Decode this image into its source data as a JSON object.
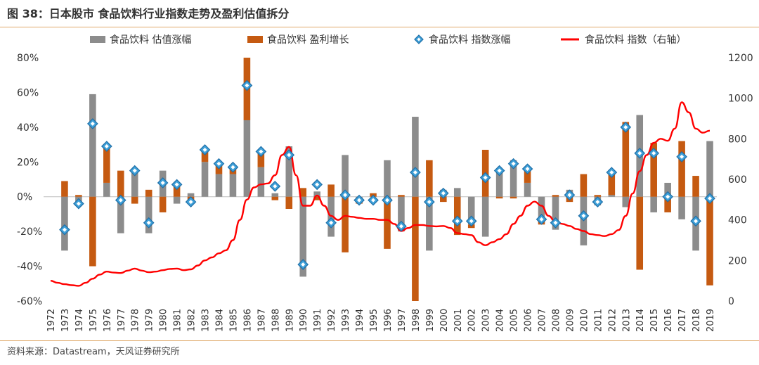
{
  "figure": {
    "title": "图 38：日本股市  食品饮料行业指数走势及盈利估值拆分",
    "source": "资料来源：Datastream，天风证券研究所"
  },
  "colors": {
    "valuation": "#8c8c8c",
    "earnings": "#c55a11",
    "change_marker_fill": "#3fa0d8",
    "change_marker_stroke": "#1f6fa8",
    "index_line": "#ff0000",
    "accent_rule": "#e0a96a"
  },
  "chart_data": {
    "type": "bar",
    "stacked": true,
    "categories": [
      "1972",
      "1973",
      "1974",
      "1975",
      "1976",
      "1977",
      "1978",
      "1979",
      "1980",
      "1981",
      "1982",
      "1983",
      "1984",
      "1985",
      "1986",
      "1987",
      "1988",
      "1989",
      "1990",
      "1991",
      "1992",
      "1993",
      "1994",
      "1995",
      "1996",
      "1997",
      "1998",
      "1999",
      "2000",
      "2001",
      "2002",
      "2003",
      "2004",
      "2005",
      "2006",
      "2007",
      "2008",
      "2009",
      "2010",
      "2011",
      "2012",
      "2013",
      "2014",
      "2015",
      "2016",
      "2017",
      "2018",
      "2019"
    ],
    "y_left": {
      "min": -60,
      "max": 80,
      "step": 20,
      "unit": "%",
      "ticks": [
        "80%",
        "60%",
        "40%",
        "20%",
        "0%",
        "-20%",
        "-40%",
        "-60%"
      ]
    },
    "y_right": {
      "min": 0,
      "max": 1200,
      "step": 200,
      "ticks": [
        "1200",
        "1000",
        "800",
        "600",
        "400",
        "200",
        "0"
      ]
    },
    "legend_position": "top",
    "series": [
      {
        "name": "食品饮料 估值涨幅",
        "kind": "bar",
        "axis": "left",
        "values": [
          null,
          -31,
          -5,
          59,
          8,
          -21,
          14,
          -21,
          15,
          -4,
          2,
          20,
          13,
          13,
          44,
          17,
          2,
          29,
          -46,
          3,
          -23,
          24,
          -3,
          0,
          21,
          -20,
          46,
          -31,
          4,
          5,
          -16,
          -23,
          15,
          21,
          8,
          -12,
          -19,
          4,
          -28,
          -5,
          1,
          -6,
          47,
          -9,
          8,
          -13,
          -31,
          32
        ]
      },
      {
        "name": "食品饮料 盈利增长",
        "kind": "bar",
        "axis": "left",
        "values": [
          null,
          9,
          1,
          -40,
          22,
          15,
          -4,
          4,
          -9,
          7,
          -2,
          7,
          6,
          4,
          36,
          10,
          -2,
          -7,
          5,
          -2,
          7,
          -32,
          -1,
          2,
          -30,
          1,
          -60,
          21,
          -3,
          -22,
          -2,
          27,
          -1,
          -1,
          8,
          -4,
          1,
          -3,
          13,
          1,
          13,
          43,
          -42,
          31,
          -9,
          32,
          12,
          -51
        ]
      },
      {
        "name": "食品饮料 指数涨幅",
        "kind": "marker",
        "axis": "left",
        "values": [
          null,
          -19,
          -4,
          42,
          29,
          -2,
          15,
          -15,
          8,
          7,
          -3,
          27,
          19,
          17,
          64,
          26,
          6,
          24,
          -39,
          7,
          -15,
          1,
          -2,
          -2,
          -2,
          -17,
          14,
          -3,
          2,
          -14,
          -14,
          11,
          15,
          19,
          16,
          -13,
          -15,
          1,
          -11,
          -3,
          14,
          40,
          25,
          25,
          0,
          23,
          -14,
          -1
        ]
      },
      {
        "name": "食品饮料 指数（右轴）",
        "kind": "line",
        "axis": "right",
        "x": [
          1972,
          1972.5,
          1973,
          1973.5,
          1974,
          1974.5,
          1975,
          1975.5,
          1976,
          1976.5,
          1977,
          1977.5,
          1978,
          1978.5,
          1979,
          1979.5,
          1980,
          1980.5,
          1981,
          1981.5,
          1982,
          1982.5,
          1983,
          1983.5,
          1984,
          1984.5,
          1985,
          1985.5,
          1986,
          1986.5,
          1987,
          1987.5,
          1988,
          1988.5,
          1989,
          1989.5,
          1990,
          1990.5,
          1991,
          1991.5,
          1992,
          1992.5,
          1993,
          1993.5,
          1994,
          1994.5,
          1995,
          1995.5,
          1996,
          1996.5,
          1997,
          1997.5,
          1998,
          1998.5,
          1999,
          1999.5,
          2000,
          2000.5,
          2001,
          2001.5,
          2002,
          2002.5,
          2003,
          2003.5,
          2004,
          2004.5,
          2005,
          2005.5,
          2006,
          2006.5,
          2007,
          2007.5,
          2008,
          2008.5,
          2009,
          2009.5,
          2010,
          2010.5,
          2011,
          2011.5,
          2012,
          2012.5,
          2013,
          2013.5,
          2014,
          2014.5,
          2015,
          2015.5,
          2016,
          2016.5,
          2017,
          2017.5,
          2018,
          2018.5,
          2019
        ],
        "values": [
          100,
          90,
          83,
          78,
          75,
          90,
          110,
          130,
          145,
          140,
          138,
          150,
          160,
          150,
          142,
          145,
          152,
          158,
          160,
          152,
          156,
          175,
          200,
          215,
          235,
          250,
          300,
          400,
          500,
          560,
          575,
          580,
          620,
          720,
          760,
          620,
          470,
          470,
          520,
          470,
          420,
          400,
          420,
          415,
          410,
          405,
          405,
          400,
          400,
          380,
          345,
          360,
          375,
          375,
          370,
          368,
          370,
          360,
          335,
          330,
          325,
          290,
          275,
          290,
          305,
          330,
          380,
          420,
          470,
          490,
          470,
          420,
          390,
          380,
          370,
          355,
          345,
          330,
          325,
          320,
          330,
          350,
          420,
          530,
          640,
          720,
          780,
          800,
          790,
          850,
          980,
          930,
          850,
          830,
          840
        ]
      }
    ]
  }
}
